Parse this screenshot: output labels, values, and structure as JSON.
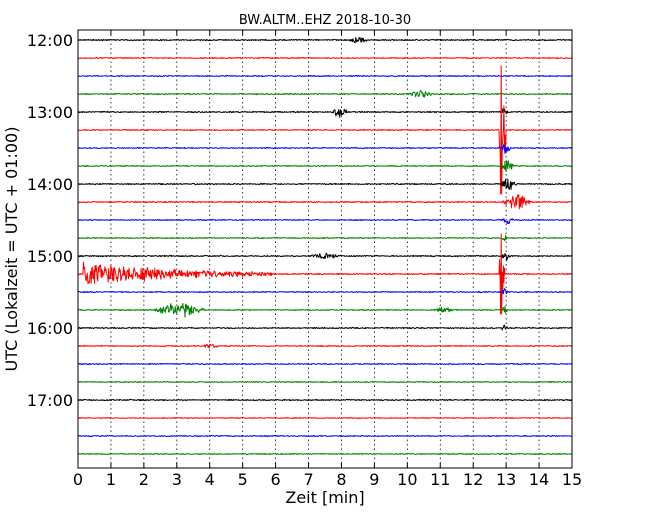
{
  "chart_data": {
    "type": "line",
    "title": "BW.ALTM..EHZ 2018-10-30",
    "xlabel": "Zeit  [min]",
    "ylabel": "UTC (Lokalzeit = UTC + 01:00)",
    "xlim": [
      0,
      15
    ],
    "x_ticks": [
      "0",
      "1",
      "2",
      "3",
      "4",
      "5",
      "6",
      "7",
      "8",
      "9",
      "10",
      "11",
      "12",
      "13",
      "14",
      "15"
    ],
    "y_ticks": [
      "12:00",
      "13:00",
      "14:00",
      "15:00",
      "16:00",
      "17:00"
    ],
    "y_tick_rows": [
      0,
      4,
      8,
      12,
      16,
      20
    ],
    "grid": true,
    "trace_colors": [
      "#000000",
      "#ff0000",
      "#0000ff",
      "#008000"
    ],
    "row_interval_minutes": 15,
    "traces": [
      {
        "start": "12:00",
        "color": "#000000",
        "noise": 0.35,
        "events": [
          {
            "t": 8.2,
            "amp": 1.0,
            "dur": 0.6
          }
        ]
      },
      {
        "start": "12:15",
        "color": "#ff0000",
        "noise": 0.3,
        "events": []
      },
      {
        "start": "12:30",
        "color": "#0000ff",
        "noise": 0.3,
        "events": []
      },
      {
        "start": "12:45",
        "color": "#008000",
        "noise": 0.35,
        "events": [
          {
            "t": 10.0,
            "amp": 1.0,
            "dur": 0.8
          }
        ]
      },
      {
        "start": "13:00",
        "color": "#000000",
        "noise": 0.35,
        "events": [
          {
            "t": 7.7,
            "amp": 1.8,
            "dur": 0.5
          },
          {
            "t": 12.85,
            "amp": 1.5,
            "dur": 0.2
          }
        ]
      },
      {
        "start": "13:15",
        "color": "#ff0000",
        "noise": 0.3,
        "events": [
          {
            "t": 12.85,
            "amp": 8,
            "dur": 0.15,
            "spike": true
          }
        ]
      },
      {
        "start": "13:30",
        "color": "#0000ff",
        "noise": 0.3,
        "events": [
          {
            "t": 12.85,
            "amp": 2.0,
            "dur": 0.3
          }
        ]
      },
      {
        "start": "13:45",
        "color": "#008000",
        "noise": 0.3,
        "events": [
          {
            "t": 12.85,
            "amp": 3.0,
            "dur": 0.4
          }
        ]
      },
      {
        "start": "14:00",
        "color": "#000000",
        "noise": 0.35,
        "events": [
          {
            "t": 12.85,
            "amp": 2.5,
            "dur": 0.5
          }
        ]
      },
      {
        "start": "14:15",
        "color": "#ff0000",
        "noise": 0.35,
        "events": [
          {
            "t": 12.85,
            "amp": 2.6,
            "dur": 0.9
          }
        ]
      },
      {
        "start": "14:30",
        "color": "#0000ff",
        "noise": 0.3,
        "events": [
          {
            "t": 12.85,
            "amp": 1.2,
            "dur": 0.4
          }
        ]
      },
      {
        "start": "14:45",
        "color": "#008000",
        "noise": 0.3,
        "events": [
          {
            "t": 12.85,
            "amp": 1.2,
            "dur": 0.2
          }
        ]
      },
      {
        "start": "15:00",
        "color": "#000000",
        "noise": 0.35,
        "events": [
          {
            "t": 7.0,
            "amp": 0.9,
            "dur": 1.0
          },
          {
            "t": 12.85,
            "amp": 1.4,
            "dur": 0.3
          }
        ]
      },
      {
        "start": "15:15",
        "color": "#ff0000",
        "noise": 0.35,
        "events": [
          {
            "t": 0.2,
            "amp": 4.5,
            "dur": 5.8,
            "quake": true
          },
          {
            "t": 12.85,
            "amp": 5,
            "dur": 0.1,
            "spike": true
          }
        ]
      },
      {
        "start": "15:30",
        "color": "#0000ff",
        "noise": 0.3,
        "events": [
          {
            "t": 12.85,
            "amp": 1.2,
            "dur": 0.2
          }
        ]
      },
      {
        "start": "15:45",
        "color": "#008000",
        "noise": 0.3,
        "events": [
          {
            "t": 2.3,
            "amp": 2.5,
            "dur": 1.6
          },
          {
            "t": 10.8,
            "amp": 1.0,
            "dur": 0.6
          },
          {
            "t": 12.85,
            "amp": 1.5,
            "dur": 0.2
          }
        ]
      },
      {
        "start": "16:00",
        "color": "#000000",
        "noise": 0.35,
        "events": [
          {
            "t": 12.85,
            "amp": 1.0,
            "dur": 0.2
          }
        ]
      },
      {
        "start": "16:15",
        "color": "#ff0000",
        "noise": 0.3,
        "events": [
          {
            "t": 3.8,
            "amp": 0.8,
            "dur": 0.5
          }
        ]
      },
      {
        "start": "16:30",
        "color": "#0000ff",
        "noise": 0.3,
        "events": []
      },
      {
        "start": "16:45",
        "color": "#008000",
        "noise": 0.3,
        "events": []
      },
      {
        "start": "17:00",
        "color": "#000000",
        "noise": 0.35,
        "events": []
      },
      {
        "start": "17:15",
        "color": "#ff0000",
        "noise": 0.25,
        "events": []
      },
      {
        "start": "17:30",
        "color": "#0000ff",
        "noise": 0.3,
        "events": []
      },
      {
        "start": "17:45",
        "color": "#008000",
        "noise": 0.3,
        "events": []
      }
    ]
  }
}
